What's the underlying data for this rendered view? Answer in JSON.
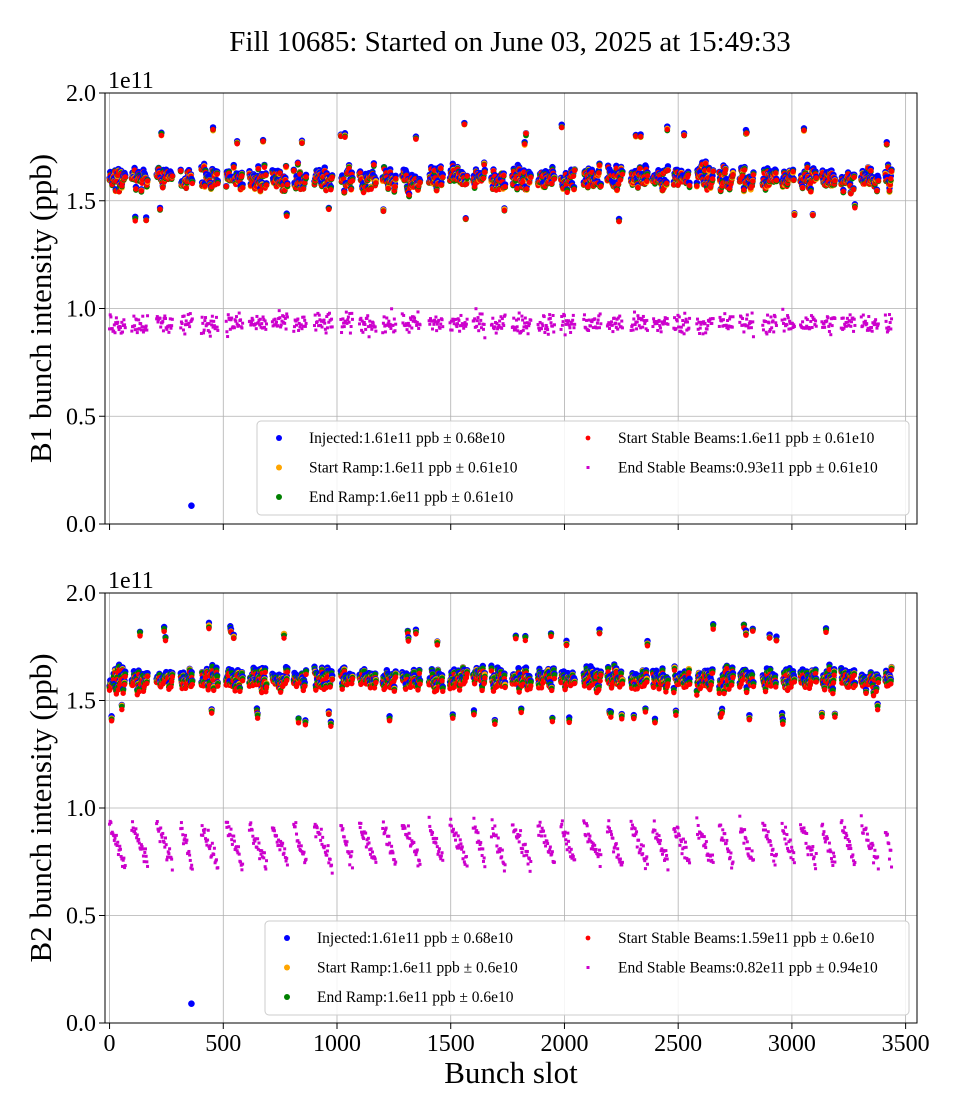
{
  "title": "Fill 10685: Started on June 03, 2025 at 15:49:33",
  "colors": {
    "injected": "#0000ff",
    "start_ramp": "#ffa500",
    "end_ramp": "#008000",
    "start_stable": "#ff0000",
    "end_stable": "#cc00cc",
    "grid": "#b0b0b0"
  },
  "chart_data": [
    {
      "type": "scatter",
      "ylabel": "B1 bunch intensity (ppb)",
      "y_offset_label": "1e11",
      "xlim": [
        -20,
        3550
      ],
      "ylim": [
        0.0,
        2.0
      ],
      "xticks": [
        0,
        500,
        1000,
        1500,
        2000,
        2500,
        3000,
        3500
      ],
      "xtick_labels_visible": false,
      "yticks": [
        0.0,
        0.5,
        1.0,
        1.5,
        2.0
      ],
      "ytick_labels": [
        "0.0",
        "0.5",
        "1.0",
        "1.5",
        "2.0"
      ],
      "grid": true,
      "legend_location": "lower right",
      "series": [
        {
          "key": "injected",
          "name": "Injected:1.61e11 ppb ± 0.68e10",
          "mean": 1.61,
          "spread": 0.068,
          "outlier": {
            "x": 360,
            "y": 0.085
          }
        },
        {
          "key": "start_ramp",
          "name": "Start Ramp:1.6e11 ppb ± 0.61e10",
          "mean": 1.6,
          "spread": 0.061
        },
        {
          "key": "end_ramp",
          "name": "End Ramp:1.6e11 ppb ± 0.61e10",
          "mean": 1.6,
          "spread": 0.061
        },
        {
          "key": "start_stable",
          "name": "Start Stable Beams:1.6e11 ppb ± 0.61e10",
          "mean": 1.6,
          "spread": 0.061
        },
        {
          "key": "end_stable",
          "name": "End Stable Beams:0.93e11 ppb ± 0.61e10",
          "mean": 0.93,
          "spread": 0.061
        }
      ]
    },
    {
      "type": "scatter",
      "ylabel": "B2 bunch intensity (ppb)",
      "y_offset_label": "1e11",
      "xlabel": "Bunch slot",
      "xlim": [
        -20,
        3550
      ],
      "ylim": [
        0.0,
        2.0
      ],
      "xticks": [
        0,
        500,
        1000,
        1500,
        2000,
        2500,
        3000,
        3500
      ],
      "xtick_labels": [
        "0",
        "500",
        "1000",
        "1500",
        "2000",
        "2500",
        "3000",
        "3500"
      ],
      "yticks": [
        0.0,
        0.5,
        1.0,
        1.5,
        2.0
      ],
      "ytick_labels": [
        "0.0",
        "0.5",
        "1.0",
        "1.5",
        "2.0"
      ],
      "grid": true,
      "legend_location": "lower right",
      "series": [
        {
          "key": "injected",
          "name": "Injected:1.61e11 ppb ± 0.68e10",
          "mean": 1.61,
          "spread": 0.068,
          "outlier": {
            "x": 360,
            "y": 0.09
          }
        },
        {
          "key": "start_ramp",
          "name": "Start Ramp:1.6e11 ppb ± 0.6e10",
          "mean": 1.6,
          "spread": 0.06
        },
        {
          "key": "end_ramp",
          "name": "End Ramp:1.6e11 ppb ± 0.6e10",
          "mean": 1.6,
          "spread": 0.06
        },
        {
          "key": "start_stable",
          "name": "Start Stable Beams:1.59e11 ppb ± 0.6e10",
          "mean": 1.59,
          "spread": 0.06
        },
        {
          "key": "end_stable",
          "name": "End Stable Beams:0.82e11 ppb ± 0.94e10",
          "mean": 0.82,
          "spread": 0.094
        }
      ]
    }
  ]
}
